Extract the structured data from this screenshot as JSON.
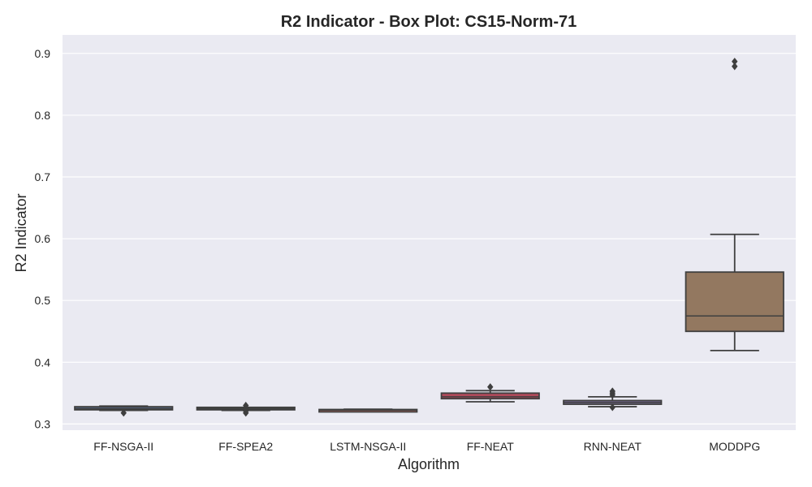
{
  "chart_data": {
    "type": "box",
    "title": "R2 Indicator - Box Plot: CS15-Norm-71",
    "xlabel": "Algorithm",
    "ylabel": "R2 Indicator",
    "ylim": [
      0.29,
      0.93
    ],
    "yticks": [
      "0.3",
      "0.4",
      "0.5",
      "0.6",
      "0.7",
      "0.8",
      "0.9"
    ],
    "grid": true,
    "background_color": "#EAEAF2",
    "categories": [
      "FF-NSGA-II",
      "FF-SPEA2",
      "LSTM-NSGA-II",
      "FF-NEAT",
      "RNN-NEAT",
      "MODDPG"
    ],
    "series": [
      {
        "category": "FF-NSGA-II",
        "whisker_low": 0.322,
        "q1": 0.323,
        "median": 0.325,
        "q3": 0.328,
        "whisker_high": 0.329,
        "outliers": [
          0.318
        ],
        "color": "#5a6f94"
      },
      {
        "category": "FF-SPEA2",
        "whisker_low": 0.322,
        "q1": 0.323,
        "median": 0.325,
        "q3": 0.327,
        "whisker_high": 0.327,
        "outliers": [
          0.318,
          0.321,
          0.326,
          0.33
        ],
        "color": "#6f9a70"
      },
      {
        "category": "LSTM-NSGA-II",
        "whisker_low": 0.321,
        "q1": 0.3215,
        "median": 0.3225,
        "q3": 0.3235,
        "whisker_high": 0.324,
        "outliers": [],
        "color": "#a8625a"
      },
      {
        "category": "FF-NEAT",
        "whisker_low": 0.336,
        "q1": 0.341,
        "median": 0.344,
        "q3": 0.35,
        "whisker_high": 0.354,
        "outliers": [
          0.36
        ],
        "color": "#b04a5a"
      },
      {
        "category": "RNN-NEAT",
        "whisker_low": 0.328,
        "q1": 0.332,
        "median": 0.335,
        "q3": 0.338,
        "whisker_high": 0.344,
        "outliers": [
          0.327,
          0.347,
          0.35,
          0.353
        ],
        "color": "#7d6fa2"
      },
      {
        "category": "MODDPG",
        "whisker_low": 0.419,
        "q1": 0.45,
        "median": 0.475,
        "q3": 0.546,
        "whisker_high": 0.607,
        "outliers": [
          0.879,
          0.887
        ],
        "color": "#937860"
      }
    ]
  }
}
